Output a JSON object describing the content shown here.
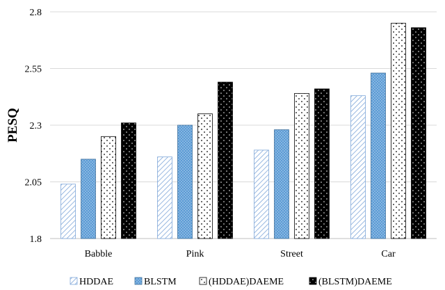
{
  "chart_data": {
    "type": "bar",
    "title": "",
    "xlabel": "",
    "ylabel": "PESQ",
    "categories": [
      "Babble",
      "Pink",
      "Street",
      "Car"
    ],
    "series": [
      {
        "name": "HDDAE",
        "values": [
          2.04,
          2.16,
          2.19,
          2.43
        ]
      },
      {
        "name": "BLSTM",
        "values": [
          2.15,
          2.3,
          2.28,
          2.53
        ]
      },
      {
        "name": "(HDDAE)DAEME",
        "values": [
          2.25,
          2.35,
          2.44,
          2.75
        ]
      },
      {
        "name": "(BLSTM)DAEME",
        "values": [
          2.31,
          2.49,
          2.46,
          2.73
        ]
      }
    ],
    "ylim": [
      1.8,
      2.8
    ],
    "yticks": [
      "1.8",
      "2.05",
      "2.3",
      "2.55",
      "2.8"
    ],
    "grid": "horizontal",
    "legend_position": "bottom"
  },
  "colors": {
    "grid": "#d9d9d9",
    "axis": "#bfbfbf",
    "hddae_stripe": "#7fa7d9",
    "blstm_fill": "#5b9bd5",
    "blstm_dot": "#bdd7ee",
    "dot_dark": "#000000"
  }
}
